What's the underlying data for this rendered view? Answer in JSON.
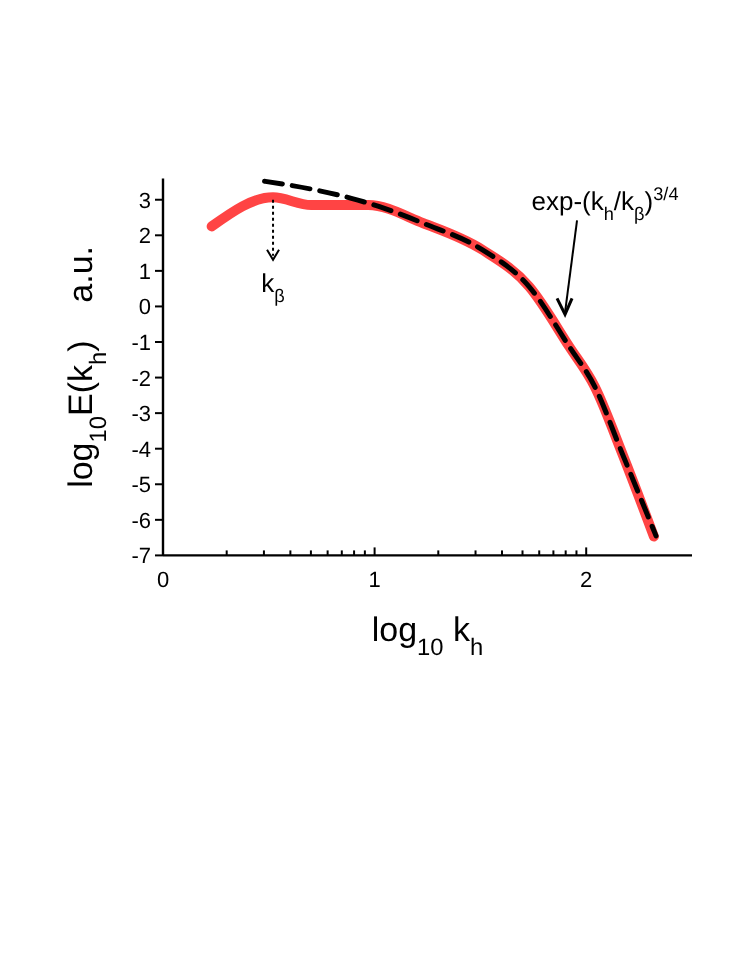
{
  "chart_data": {
    "type": "line",
    "xlabel": "log$_{10}$ k$_{h}$",
    "ylabel": "log$_{10}$E(k$_{h}$)    a.u.",
    "xlim": [
      0,
      2.5
    ],
    "ylim": [
      -7,
      3.6
    ],
    "xticks": [
      0,
      {
        "value": 0.301,
        "label": null
      },
      {
        "value": 0.477,
        "label": null
      },
      {
        "value": 0.602,
        "label": null
      },
      {
        "value": 0.699,
        "label": null
      },
      {
        "value": 0.778,
        "label": null
      },
      {
        "value": 0.845,
        "label": null
      },
      {
        "value": 0.903,
        "label": null
      },
      {
        "value": 0.954,
        "label": null
      },
      1,
      {
        "value": 1.301,
        "label": null
      },
      {
        "value": 1.477,
        "label": null
      },
      {
        "value": 1.602,
        "label": null
      },
      {
        "value": 1.699,
        "label": null
      },
      {
        "value": 1.778,
        "label": null
      },
      {
        "value": 1.845,
        "label": null
      },
      {
        "value": 1.903,
        "label": null
      },
      {
        "value": 1.954,
        "label": null
      },
      2
    ],
    "yticks": [
      -7,
      -6,
      -5,
      -4,
      -3,
      -2,
      -1,
      0,
      1,
      2,
      3
    ],
    "grid": false,
    "marker": "none",
    "series": [
      {
        "color": "#ff4444",
        "line_style": "solid",
        "x": [
          0.23,
          0.52,
          0.7,
          0.97,
          1.23,
          1.51,
          1.73,
          1.92,
          2.04,
          2.17,
          2.32
        ],
        "values": [
          2.25,
          3.07,
          2.85,
          2.85,
          2.34,
          1.59,
          0.56,
          -1.13,
          -2.25,
          -4.13,
          -6.47
        ]
      },
      {
        "color": "#000000",
        "line_style": "dashed",
        "x": [
          0.48,
          0.7,
          0.89,
          1.05,
          1.23,
          1.51,
          1.73,
          1.92,
          2.04,
          2.17,
          2.33
        ],
        "values": [
          3.52,
          3.3,
          3.04,
          2.75,
          2.34,
          1.59,
          0.56,
          -1.13,
          -2.25,
          -4.13,
          -6.45
        ]
      }
    ],
    "annotations": [
      {
        "text": "k$_{β}$",
        "x": 0.52,
        "y": 3.0
      },
      {
        "text": "exp-(k$_{h}$/k$_{β}$)$^{3/4}$",
        "x": 1.9,
        "y": -0.28
      }
    ]
  }
}
